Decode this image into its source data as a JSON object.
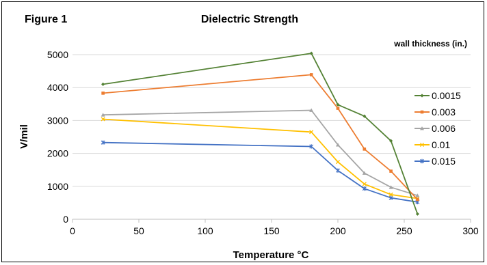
{
  "figure_label": "Figure 1",
  "chart_data": {
    "type": "line",
    "title": "Dielectric Strength",
    "xlabel": "Temperature °C",
    "ylabel": "V/mil",
    "xlim": [
      0,
      300
    ],
    "ylim": [
      0,
      5000
    ],
    "xticks": [
      0,
      50,
      100,
      150,
      200,
      250,
      300
    ],
    "yticks": [
      0,
      1000,
      2000,
      3000,
      4000,
      5000
    ],
    "grid": "horizontal",
    "legend_title": "wall thickness (in.)",
    "legend_position": "right",
    "series": [
      {
        "name": "0.0015",
        "color": "#548235",
        "marker": "diamond",
        "x": [
          23,
          180,
          200,
          220,
          240,
          260
        ],
        "y": [
          4100,
          5040,
          3480,
          3130,
          2380,
          160
        ]
      },
      {
        "name": "0.003",
        "color": "#ED7D31",
        "marker": "square",
        "x": [
          23,
          180,
          200,
          220,
          240,
          260
        ],
        "y": [
          3830,
          4390,
          3370,
          2130,
          1460,
          600
        ]
      },
      {
        "name": "0.006",
        "color": "#A5A5A5",
        "marker": "triangle",
        "x": [
          23,
          180,
          200,
          220,
          240,
          260
        ],
        "y": [
          3170,
          3310,
          2260,
          1400,
          970,
          720
        ]
      },
      {
        "name": "0.01",
        "color": "#FFC000",
        "marker": "x",
        "x": [
          23,
          180,
          200,
          220,
          240,
          260
        ],
        "y": [
          3040,
          2650,
          1740,
          1070,
          750,
          630
        ]
      },
      {
        "name": "0.015",
        "color": "#4472C4",
        "marker": "star",
        "x": [
          23,
          180,
          200,
          220,
          240,
          260
        ],
        "y": [
          2330,
          2210,
          1480,
          930,
          650,
          520
        ]
      }
    ]
  }
}
